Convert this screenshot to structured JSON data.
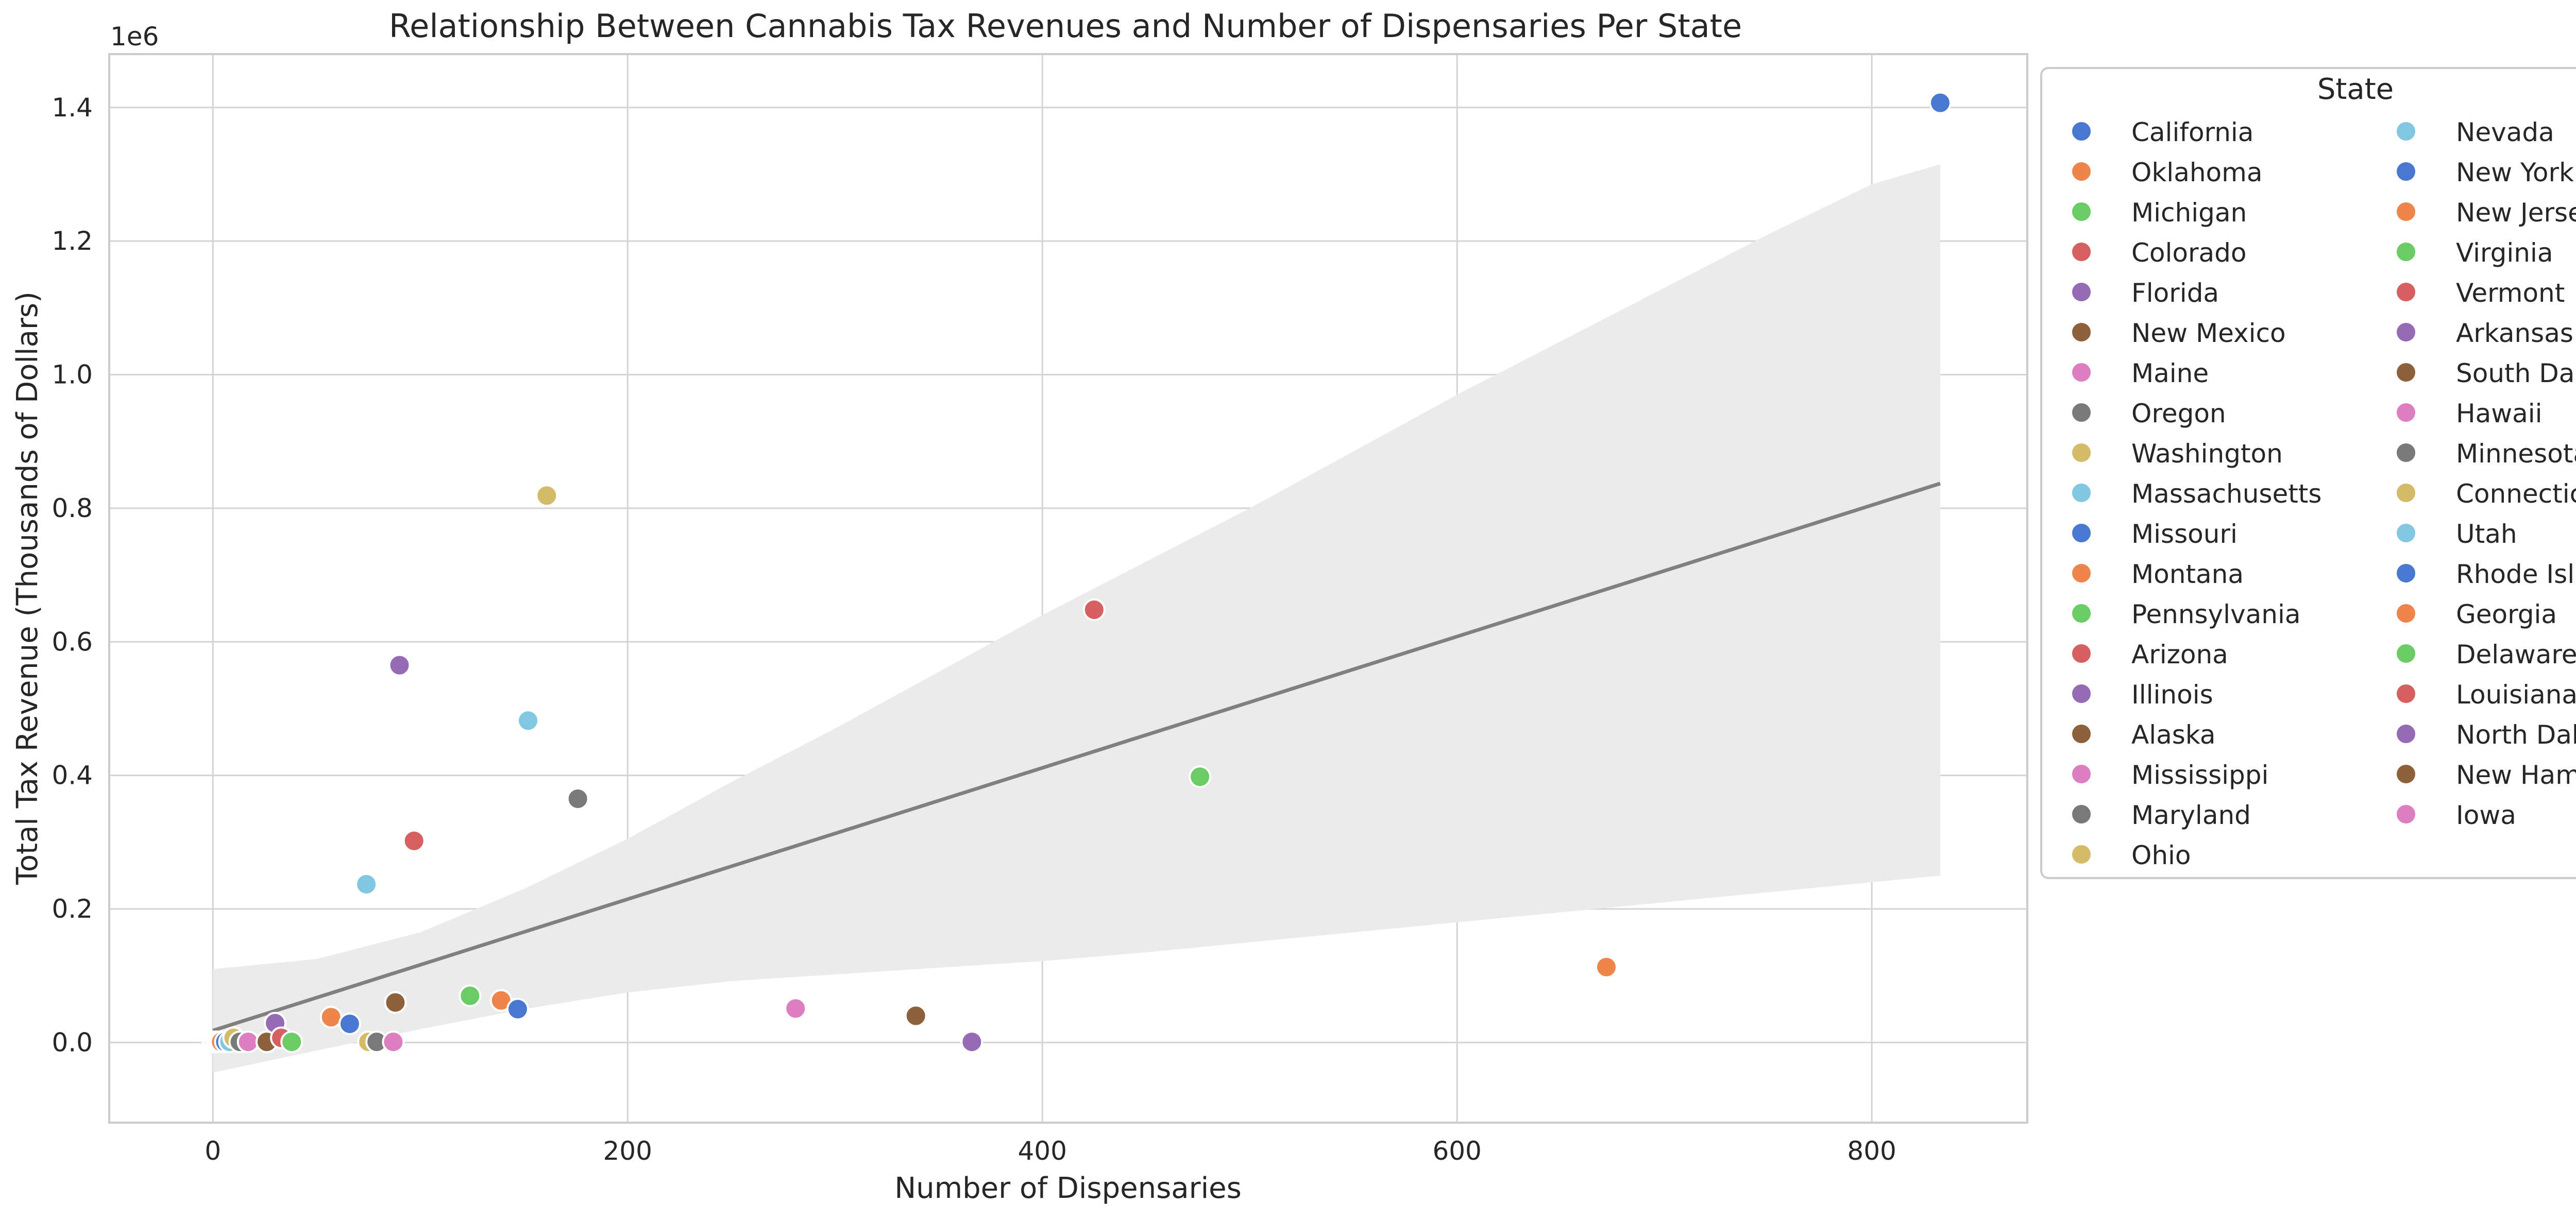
{
  "chart_data": {
    "type": "scatter",
    "title": "Relationship Between Cannabis Tax Revenues and Number of Dispensaries Per State",
    "xlabel": "Number of Dispensaries",
    "ylabel": "Total Tax Revenue (Thousands of Dollars)",
    "y_offset_label": "1e6",
    "xlim": [
      -50,
      875
    ],
    "ylim": [
      -120000,
      1480000
    ],
    "x_ticks": [
      0,
      200,
      400,
      600,
      800
    ],
    "x_tick_labels": [
      "0",
      "200",
      "400",
      "600",
      "800"
    ],
    "y_ticks": [
      0,
      200000,
      400000,
      600000,
      800000,
      1000000,
      1200000,
      1400000
    ],
    "y_tick_labels": [
      "0.0",
      "0.2",
      "0.4",
      "0.6",
      "0.8",
      "1.0",
      "1.2",
      "1.4"
    ],
    "grid": true,
    "legend_title": "State",
    "legend_position": "outside upper right",
    "palette": [
      "#4878d0",
      "#ee854a",
      "#6acc64",
      "#d65f5f",
      "#956cb4",
      "#8c613c",
      "#dc7ec0",
      "#797979",
      "#d5bb67",
      "#82c6e2"
    ],
    "regression": {
      "color": "#808080",
      "band_color": "#ebebeb",
      "line": [
        [
          0,
          18000
        ],
        [
          833,
          837000
        ]
      ],
      "band_upper": [
        [
          0,
          110000
        ],
        [
          50,
          125000
        ],
        [
          100,
          165000
        ],
        [
          150,
          230000
        ],
        [
          200,
          305000
        ],
        [
          250,
          390000
        ],
        [
          300,
          470000
        ],
        [
          350,
          555000
        ],
        [
          400,
          640000
        ],
        [
          450,
          720000
        ],
        [
          500,
          800000
        ],
        [
          550,
          885000
        ],
        [
          600,
          970000
        ],
        [
          650,
          1050000
        ],
        [
          700,
          1130000
        ],
        [
          750,
          1210000
        ],
        [
          800,
          1285000
        ],
        [
          833,
          1315000
        ]
      ],
      "band_lower": [
        [
          833,
          250000
        ],
        [
          800,
          240000
        ],
        [
          750,
          225000
        ],
        [
          700,
          210000
        ],
        [
          650,
          195000
        ],
        [
          600,
          180000
        ],
        [
          550,
          165000
        ],
        [
          500,
          150000
        ],
        [
          450,
          135000
        ],
        [
          400,
          122000
        ],
        [
          350,
          112000
        ],
        [
          300,
          102000
        ],
        [
          250,
          92000
        ],
        [
          200,
          75000
        ],
        [
          150,
          50000
        ],
        [
          100,
          20000
        ],
        [
          50,
          -12000
        ],
        [
          0,
          -45000
        ]
      ]
    },
    "points": [
      {
        "state": "California",
        "x": 833,
        "y": 1407000
      },
      {
        "state": "Oklahoma",
        "x": 672,
        "y": 113000
      },
      {
        "state": "Michigan",
        "x": 476,
        "y": 398000
      },
      {
        "state": "Colorado",
        "x": 425,
        "y": 648000
      },
      {
        "state": "Florida",
        "x": 366,
        "y": 1000
      },
      {
        "state": "New Mexico",
        "x": 339,
        "y": 40000
      },
      {
        "state": "Maine",
        "x": 281,
        "y": 51000
      },
      {
        "state": "Oregon",
        "x": 176,
        "y": 365000
      },
      {
        "state": "Washington",
        "x": 161,
        "y": 819000
      },
      {
        "state": "Massachusetts",
        "x": 152,
        "y": 482000
      },
      {
        "state": "Missouri",
        "x": 147,
        "y": 50000
      },
      {
        "state": "Montana",
        "x": 139,
        "y": 63000
      },
      {
        "state": "Pennsylvania",
        "x": 124,
        "y": 70000
      },
      {
        "state": "Arizona",
        "x": 97,
        "y": 302000
      },
      {
        "state": "Illinois",
        "x": 90,
        "y": 565000
      },
      {
        "state": "Alaska",
        "x": 88,
        "y": 60000
      },
      {
        "state": "Mississippi",
        "x": 87,
        "y": 1000
      },
      {
        "state": "Maryland",
        "x": 79,
        "y": 1000
      },
      {
        "state": "Ohio",
        "x": 75,
        "y": 1000
      },
      {
        "state": "Nevada",
        "x": 74,
        "y": 237000
      },
      {
        "state": "New York",
        "x": 66,
        "y": 28000
      },
      {
        "state": "New Jersey",
        "x": 57,
        "y": 38000
      },
      {
        "state": "Virginia",
        "x": 38,
        "y": 1000
      },
      {
        "state": "Vermont",
        "x": 33,
        "y": 7000
      },
      {
        "state": "Arkansas",
        "x": 30,
        "y": 29000
      },
      {
        "state": "South Dakota",
        "x": 26,
        "y": 1000
      },
      {
        "state": "Hawaii",
        "x": 17,
        "y": 1000
      },
      {
        "state": "Minnesota",
        "x": 13,
        "y": 1000
      },
      {
        "state": "Connecticut",
        "x": 10,
        "y": 7000
      },
      {
        "state": "Utah",
        "x": 8,
        "y": 1000
      },
      {
        "state": "Rhode Island",
        "x": 6,
        "y": 1000
      },
      {
        "state": "Georgia",
        "x": 4,
        "y": 1000
      },
      {
        "state": "Delaware",
        "x": 3,
        "y": 1000
      },
      {
        "state": "Louisiana",
        "x": 3,
        "y": 1000
      },
      {
        "state": "North Dakota",
        "x": 2,
        "y": 1000
      },
      {
        "state": "New Hampshire",
        "x": 1,
        "y": 1000
      },
      {
        "state": "Iowa",
        "x": 0,
        "y": 1000
      }
    ]
  }
}
